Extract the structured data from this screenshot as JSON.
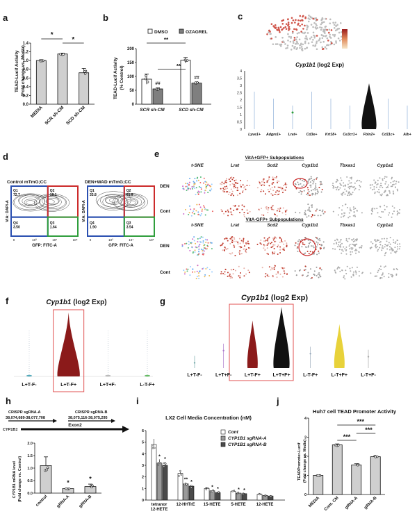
{
  "panel_labels": [
    "a",
    "b",
    "c",
    "d",
    "e",
    "f",
    "g",
    "h",
    "i",
    "j"
  ],
  "colors": {
    "black": "#111111",
    "gray": "#7f7f7f",
    "light_gray": "#cfcfcf",
    "dark_red": "#8b1a1a",
    "red": "#cc2b2b",
    "yellow": "#e8d23a",
    "box_red": "#e05050",
    "blue": "#2a4fb0",
    "green": "#2f9e3c"
  },
  "a": {
    "ylabel": "TEAD-Lucif Activity\n(Fold change vs. Media)",
    "sig": [
      "*",
      "*"
    ],
    "chart_data": {
      "type": "bar",
      "categories": [
        "MEDIA",
        "SCR sh-CM",
        "SCD sh-CM"
      ],
      "values": [
        1.0,
        1.15,
        0.72
      ],
      "errors": [
        0.02,
        0.02,
        0.1
      ],
      "ylim": [
        0,
        1.4
      ],
      "yticks": [
        "0.0",
        "0.2",
        "0.4",
        "0.6",
        "0.8",
        "1.0",
        "1.2",
        "1.4"
      ],
      "ylabel": "TEAD-Lucif Activity (Fold change vs. Media)"
    }
  },
  "b": {
    "legend": [
      "DMSO",
      "OZAGREL"
    ],
    "sig": [
      "**",
      "**",
      "##",
      "##"
    ],
    "chart_data": {
      "type": "bar",
      "categories": [
        "SCR sh-CM",
        "SCD sh-CM"
      ],
      "series": [
        {
          "name": "DMSO",
          "values": [
            90,
            158
          ]
        },
        {
          "name": "OZAGREL",
          "values": [
            55,
            76
          ]
        }
      ],
      "ylim": [
        0,
        200
      ],
      "yticks": [
        "0",
        "50",
        "100",
        "150",
        "200"
      ],
      "ylabel": "TEAD-Lucif Activity (% Control)"
    }
  },
  "c": {
    "title": "Cyp1b1",
    "title_suffix": "(log2 Exp)",
    "yticks": [
      "0",
      "0.5",
      "1",
      "1.5",
      "2",
      "2.5",
      "3",
      "3.5",
      "4"
    ],
    "categories": [
      "Lyve1+",
      "Adgre1+",
      "Lrat+",
      "Cd3e+",
      "Krt18+",
      "Ce3cr1+",
      "Fbln2+",
      "Cd11c+",
      "Alb+"
    ]
  },
  "d": {
    "left_title": "Control mTmG;CC",
    "right_title": "DEN+WAD mTmG;CC",
    "ylabel": "VIA: DAPI-A",
    "xlabel": "GFP: FITC-A",
    "left_quads": [
      {
        "q": "Q1",
        "v": "72.7"
      },
      {
        "q": "Q2",
        "v": "19.1"
      },
      {
        "q": "Q4",
        "v": "3.50"
      },
      {
        "q": "Q3",
        "v": "1.64"
      }
    ],
    "right_quads": [
      {
        "q": "Q1",
        "v": "33.8"
      },
      {
        "q": "Q2",
        "v": "61.9"
      },
      {
        "q": "Q4",
        "v": "1.90"
      },
      {
        "q": "Q3",
        "v": "3.54"
      }
    ],
    "xticks": [
      "0",
      "10³",
      "10⁴",
      "10⁵"
    ]
  },
  "e": {
    "top_section": "VitA+GFP+ Subpopulations",
    "bottom_section": "VitA-GFP+ Subpopulations",
    "col_labels": [
      "t-SNE",
      "Lrat",
      "Scd2",
      "Cyp1b1",
      "Tbxas1",
      "Cyp1a1"
    ],
    "row_labels": [
      "DEN",
      "Cont"
    ]
  },
  "f": {
    "title": "Cyp1b1",
    "title_suffix": "(log2 Exp)",
    "categories": [
      "L+T-F-",
      "L+T-F+",
      "L+T+F-",
      "L-T-F+"
    ]
  },
  "g": {
    "title": "Cyp1b1",
    "title_suffix": "(log2 Exp)",
    "categories": [
      "L+T-F-",
      "L+T+F-",
      "L+T-F+",
      "L+T+F+",
      "L-T-F+",
      "L-T+F+",
      "L-T+F-"
    ]
  },
  "h": {
    "sgrna_a_label": "CRISPR sgRNA-A",
    "sgrna_a_coords": "38,074,689-38,077,708",
    "sgrna_b_label": "CRISPR sgRNA-B",
    "sgrna_b_coords": "38,075,116-38,075,295",
    "gene": "CYP1B1",
    "exon": "Exon2",
    "sig": [
      "*",
      "*"
    ],
    "chart_data": {
      "type": "bar",
      "categories": [
        "control",
        "gRNA-A",
        "gRNA-B"
      ],
      "values": [
        1.1,
        0.18,
        0.26
      ],
      "errors": [
        0.35,
        0.02,
        0.1
      ],
      "ylim": [
        0,
        2.0
      ],
      "yticks": [
        "0.0",
        "0.5",
        "1.0",
        "1.5",
        "2.0"
      ],
      "ylabel": "CYP1B1 mRNA level (Fold change vs. Control)"
    }
  },
  "i": {
    "title": "LX2 Cell Media Concentration (nM)",
    "legend": [
      "Cont",
      "CYP1B1 sgRNA-A",
      "CYP1B1 sgRNA-B"
    ],
    "chart_data": {
      "type": "bar",
      "categories": [
        "tetranor\n12-HETE",
        "12-HHTrE",
        "15-HETE",
        "5-HETE",
        "12-HETE"
      ],
      "series": [
        {
          "name": "Cont",
          "values": [
            4.8,
            2.3,
            1.0,
            0.75,
            0.5
          ]
        },
        {
          "name": "CYP1B1 sgRNA-A",
          "values": [
            3.2,
            1.4,
            0.8,
            0.6,
            0.4
          ]
        },
        {
          "name": "CYP1B1 sgRNA-B",
          "values": [
            3.0,
            1.2,
            0.65,
            0.55,
            0.35
          ]
        }
      ],
      "ylim": [
        0,
        6
      ],
      "yticks": [
        "0",
        "1",
        "2",
        "3",
        "4",
        "5",
        "6"
      ],
      "sig_marks": [
        "*",
        "*",
        "**",
        "*",
        "*",
        "*",
        "*",
        "*"
      ]
    }
  },
  "j": {
    "title": "Huh7 cell TEAD Promoter Activity",
    "sig": [
      "***",
      "***",
      "***"
    ],
    "chart_data": {
      "type": "bar",
      "categories": [
        "MEDIA",
        "Cont. CM",
        "gRNA-A",
        "gRNA-B"
      ],
      "values": [
        1.0,
        2.6,
        1.55,
        1.98
      ],
      "errors": [
        0.02,
        0.05,
        0.06,
        0.04
      ],
      "ylim": [
        0,
        4
      ],
      "yticks": [
        "0",
        "1",
        "2",
        "3",
        "4"
      ],
      "ylabel": "TEADPromoter-Lucif (Fold change vs. Media)"
    }
  }
}
